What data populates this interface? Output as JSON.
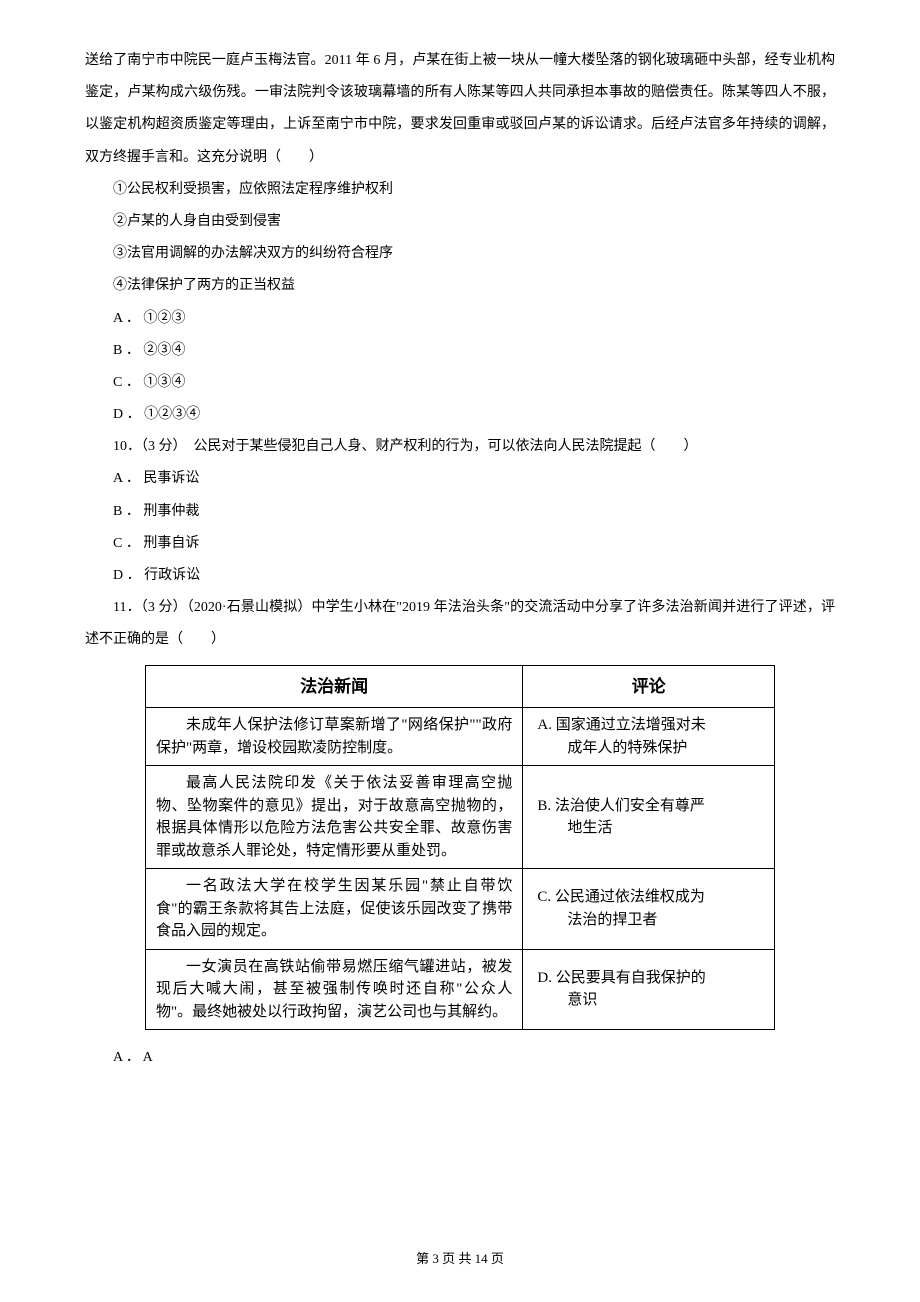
{
  "intro_paragraph": "送给了南宁市中院民一庭卢玉梅法官。2011 年 6 月，卢某在街上被一块从一幢大楼坠落的钢化玻璃砸中头部，经专业机构鉴定，卢某构成六级伤残。一审法院判令该玻璃幕墙的所有人陈某等四人共同承担本事故的赔偿责任。陈某等四人不服，以鉴定机构超资质鉴定等理由，上诉至南宁市中院，要求发回重审或驳回卢某的诉讼请求。后经卢法官多年持续的调解，双方终握手言和。这充分说明（　　）",
  "statements": {
    "s1": "①公民权利受损害，应依照法定程序维护权利",
    "s2": "②卢某的人身自由受到侵害",
    "s3": "③法官用调解的办法解决双方的纠纷符合程序",
    "s4": "④法律保护了两方的正当权益"
  },
  "q9_options": {
    "a": "A ． ①②③",
    "b": "B ． ②③④",
    "c": "C ． ①③④",
    "d": "D ． ①②③④"
  },
  "q10": {
    "stem": "10．（3 分）　公民对于某些侵犯自己人身、财产权利的行为，可以依法向人民法院提起（　　）",
    "a": "A ． 民事诉讼",
    "b": "B ． 刑事仲裁",
    "c": "C ． 刑事自诉",
    "d": "D ． 行政诉讼"
  },
  "q11": {
    "stem": "11．（3 分）（2020·石景山模拟）中学生小林在\"2019 年法治头条\"的交流活动中分享了许多法治新闻并进行了评述，评述不正确的是（　　）"
  },
  "table": {
    "headers": {
      "news": "法治新闻",
      "comment": "评论"
    },
    "rows": [
      {
        "news": "未成年人保护法修订草案新增了\"网络保护\"\"政府保护\"两章，增设校园欺凌防控制度。",
        "label": "A.",
        "comment_line1": "国家通过立法增强对未",
        "comment_line2": "成年人的特殊保护"
      },
      {
        "news": "最高人民法院印发《关于依法妥善审理高空抛物、坠物案件的意见》提出，对于故意高空抛物的，根据具体情形以危险方法危害公共安全罪、故意伤害罪或故意杀人罪论处，特定情形要从重处罚。",
        "label": "B.",
        "comment_line1": "法治使人们安全有尊严",
        "comment_line2": "地生活"
      },
      {
        "news": "一名政法大学在校学生因某乐园\"禁止自带饮食\"的霸王条款将其告上法庭，促使该乐园改变了携带食品入园的规定。",
        "label": "C.",
        "comment_line1": "公民通过依法维权成为",
        "comment_line2": "法治的捍卫者"
      },
      {
        "news": "一女演员在高铁站偷带易燃压缩气罐进站，被发现后大喊大闹，甚至被强制传唤时还自称\"公众人物\"。最终她被处以行政拘留，演艺公司也与其解约。",
        "label": "D.",
        "comment_line1": "公民要具有自我保护的",
        "comment_line2": "意识"
      }
    ]
  },
  "q11_options": {
    "a": "A ． A"
  },
  "footer": {
    "text": "第 3 页 共 14 页"
  }
}
